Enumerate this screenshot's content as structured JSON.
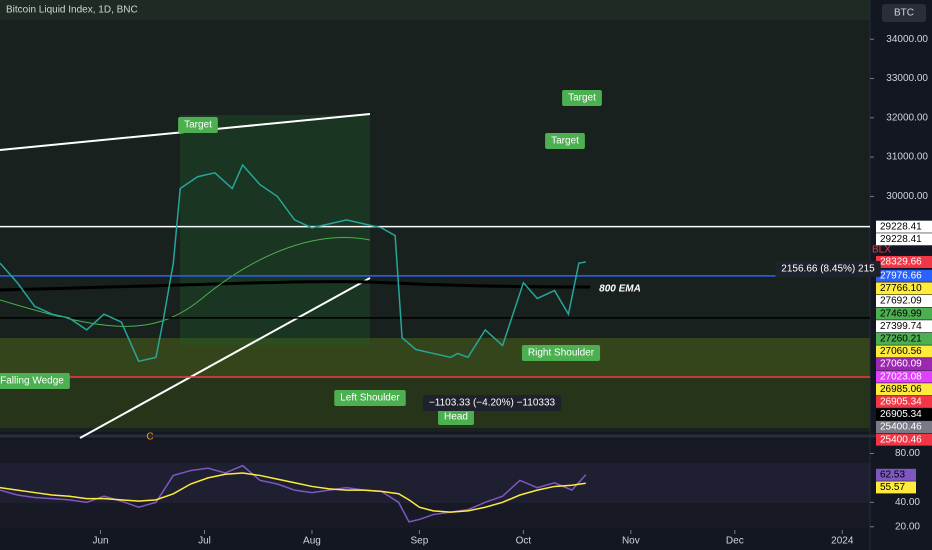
{
  "chart_data": [
    {
      "type": "line",
      "title": "Bitcoin Liquid Index, 1D, BNC",
      "symbol": "BTC",
      "x": [
        123,
        128,
        133,
        138,
        143,
        148,
        153,
        158,
        163,
        168,
        170,
        173,
        175,
        180,
        185,
        190,
        193,
        198,
        203,
        208,
        213,
        218,
        223,
        228,
        233,
        237,
        239,
        243,
        248,
        253,
        255,
        258,
        263,
        268,
        271,
        274,
        278,
        283,
        287,
        290,
        292
      ],
      "series": [
        {
          "name": "BLX",
          "color": "#26a69a",
          "values": [
            28300,
            27800,
            27200,
            27000,
            26900,
            26600,
            27000,
            26800,
            25800,
            25900,
            26800,
            28300,
            30200,
            30500,
            30600,
            30200,
            30800,
            30300,
            30000,
            29400,
            29200,
            29300,
            29400,
            29300,
            29200,
            29000,
            26400,
            26100,
            26000,
            25900,
            26000,
            25900,
            26600,
            26200,
            27000,
            27800,
            27400,
            27600,
            27000,
            28300,
            28330
          ]
        }
      ],
      "xlim": [
        123,
        374
      ],
      "xticks": [
        {
          "value": 152,
          "label": "Jun"
        },
        {
          "value": 182,
          "label": "Jul"
        },
        {
          "value": 213,
          "label": "Aug"
        },
        {
          "value": 244,
          "label": "Sep"
        },
        {
          "value": 274,
          "label": "Oct"
        },
        {
          "value": 305,
          "label": "Nov"
        },
        {
          "value": 335,
          "label": "Dec"
        },
        {
          "value": 366,
          "label": "2024"
        }
      ],
      "ylim": [
        24000,
        35000
      ],
      "yticks": [
        {
          "value": 34000,
          "label": "34000.00"
        },
        {
          "value": 33000,
          "label": "33000.00"
        },
        {
          "value": 32000,
          "label": "32000.00"
        },
        {
          "value": 31000,
          "label": "31000.00"
        },
        {
          "value": 30000,
          "label": "30000.00"
        }
      ],
      "price_tags": [
        {
          "value": 29228.41,
          "color": "#ffffff"
        },
        {
          "value": 29228.41,
          "color": "#ffffff"
        },
        {
          "value": 28329.66,
          "color": "#f23645"
        },
        {
          "value": 27976.66,
          "color": "#2962ff"
        },
        {
          "value": 27766.1,
          "label": "27766.10",
          "color": "#ffeb3b"
        },
        {
          "value": 27692.09,
          "color": "#ffffff"
        },
        {
          "value": 27469.99,
          "color": "#4caf50"
        },
        {
          "value": 27399.74,
          "color": "#ffffff"
        },
        {
          "value": 27260.21,
          "color": "#4caf50"
        },
        {
          "value": 27060.56,
          "color": "#ffeb3b"
        },
        {
          "value": 27060.09,
          "color": "#9c27b0"
        },
        {
          "value": 27023.08,
          "color": "#e040fb"
        },
        {
          "value": 26985.06,
          "color": "#ffeb3b"
        },
        {
          "value": 26905.34,
          "color": "#f23645"
        },
        {
          "value": 26905.34,
          "color": "#000000"
        },
        {
          "value": 25400.46,
          "color": "#787b86"
        },
        {
          "value": 25400.46,
          "color": "#f23645"
        }
      ],
      "annotations": [
        "Target",
        "Target",
        "Target",
        "Falling Wedge",
        "Left Shoulder",
        "Head",
        "Right Shoulder",
        "800 EMA",
        "−1103.33 (−4.20%) −110333",
        "2156.66 (8.45%) 215",
        "C"
      ]
    },
    {
      "type": "line",
      "x": [
        123,
        128,
        133,
        138,
        143,
        148,
        153,
        158,
        163,
        168,
        173,
        178,
        183,
        188,
        193,
        198,
        203,
        208,
        213,
        218,
        223,
        228,
        233,
        238,
        241,
        244,
        248,
        253,
        258,
        263,
        268,
        273,
        278,
        283,
        288,
        292
      ],
      "series": [
        {
          "color": "#7e57c2",
          "values": [
            50,
            46,
            44,
            43,
            42,
            40,
            45,
            41,
            36,
            40,
            62,
            66,
            68,
            64,
            70,
            58,
            55,
            50,
            48,
            50,
            52,
            50,
            49,
            40,
            24,
            26,
            30,
            32,
            34,
            40,
            45,
            58,
            52,
            56,
            50,
            62.53
          ]
        },
        {
          "color": "#ffeb3b",
          "values": [
            52,
            50,
            48,
            46,
            45,
            43,
            43,
            42,
            41,
            42,
            47,
            55,
            60,
            63,
            64,
            62,
            59,
            56,
            53,
            51,
            50,
            50,
            49,
            47,
            42,
            36,
            33,
            32,
            33,
            36,
            40,
            46,
            50,
            53,
            54,
            55.57
          ]
        }
      ],
      "ylim": [
        19,
        91
      ],
      "yticks": [
        {
          "value": 80,
          "label": "80.00"
        },
        {
          "value": 40,
          "label": "40.00"
        },
        {
          "value": 20,
          "label": "20.00"
        }
      ],
      "last_tags": [
        {
          "value": 62.53,
          "color": "#7e57c2"
        },
        {
          "value": 55.57,
          "color": "#ffeb3b"
        }
      ]
    }
  ]
}
